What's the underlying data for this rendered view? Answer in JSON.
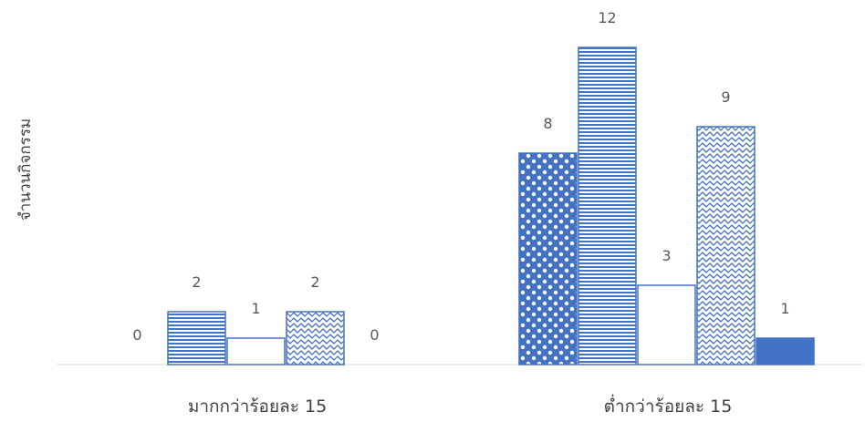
{
  "chart_data": {
    "type": "bar",
    "title": "",
    "xlabel": "",
    "ylabel": "จำนวนกิจกรรม",
    "ylim": [
      0,
      12
    ],
    "grid": false,
    "categories": [
      "มากกว่าร้อยละ 15",
      "ต่ำกว่าร้อยละ 15"
    ],
    "series": [
      {
        "values": [
          0,
          8
        ],
        "pattern": "checker",
        "color": "#4472C4"
      },
      {
        "values": [
          2,
          12
        ],
        "pattern": "horizontal-lines",
        "color": "#4472C4"
      },
      {
        "values": [
          1,
          3
        ],
        "pattern": "outline",
        "color": "#4472C4"
      },
      {
        "values": [
          2,
          9
        ],
        "pattern": "wave",
        "color": "#4472C4"
      },
      {
        "values": [
          0,
          1
        ],
        "pattern": "solid",
        "color": "#4472C4"
      }
    ],
    "axis_color": "#D9D9D9"
  }
}
